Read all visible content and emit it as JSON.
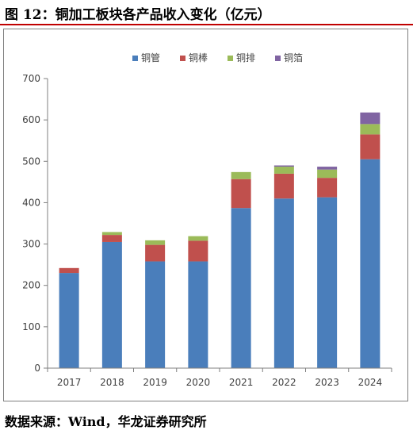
{
  "header": {
    "title": "图 12：铜加工板块各产品收入变化（亿元）"
  },
  "footer": {
    "source": "数据来源：Wind，华龙证券研究所"
  },
  "chart_data": {
    "type": "bar",
    "stacked": true,
    "title": "",
    "xlabel": "",
    "ylabel": "",
    "categories": [
      "2017",
      "2018",
      "2019",
      "2020",
      "2021",
      "2022",
      "2023",
      "2024"
    ],
    "series": [
      {
        "name": "铜管",
        "color": "#4a7ebb",
        "values": [
          230,
          305,
          258,
          258,
          387,
          410,
          413,
          505
        ]
      },
      {
        "name": "铜棒",
        "color": "#c0504d",
        "values": [
          12,
          17,
          40,
          50,
          70,
          60,
          47,
          60
        ]
      },
      {
        "name": "铜排",
        "color": "#9bbb59",
        "values": [
          0,
          7,
          11,
          11,
          17,
          17,
          20,
          25
        ]
      },
      {
        "name": "铜箔",
        "color": "#8064a2",
        "values": [
          0,
          0,
          0,
          0,
          0,
          3,
          7,
          28
        ]
      }
    ],
    "ylim": [
      0,
      700
    ],
    "yticks": [
      0,
      100,
      200,
      300,
      400,
      500,
      600,
      700
    ],
    "grid": false,
    "legend_position": "top"
  }
}
